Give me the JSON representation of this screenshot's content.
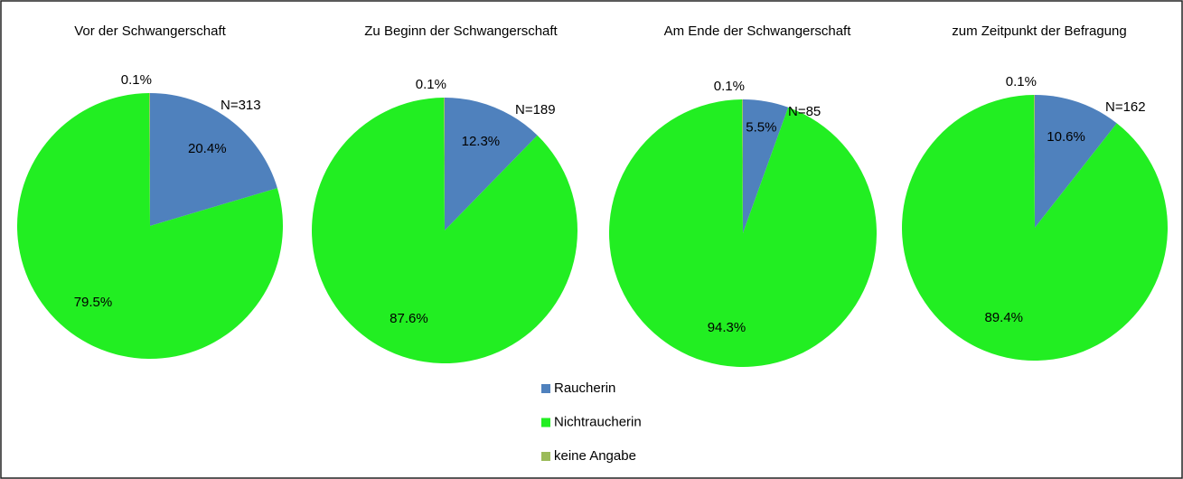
{
  "chart_data": [
    {
      "type": "pie",
      "title": "Vor der Schwangerschaft",
      "annotation": "N=313",
      "categories": [
        "Raucherin",
        "Nichtraucherin",
        "keine Angabe"
      ],
      "values": [
        20.4,
        79.5,
        0.1
      ],
      "value_labels": [
        "20.4%",
        "79.5%",
        "0.1%"
      ],
      "colors": [
        "#4f81bd",
        "#22ee22",
        "#9bbb59"
      ]
    },
    {
      "type": "pie",
      "title": "Zu Beginn der Schwangerschaft",
      "annotation": "N=189",
      "categories": [
        "Raucherin",
        "Nichtraucherin",
        "keine Angabe"
      ],
      "values": [
        12.3,
        87.6,
        0.1
      ],
      "value_labels": [
        "12.3%",
        "87.6%",
        "0.1%"
      ],
      "colors": [
        "#4f81bd",
        "#22ee22",
        "#9bbb59"
      ]
    },
    {
      "type": "pie",
      "title": "Am Ende der Schwangerschaft",
      "annotation": "N=85",
      "categories": [
        "Raucherin",
        "Nichtraucherin",
        "keine Angabe"
      ],
      "values": [
        5.5,
        94.3,
        0.1
      ],
      "value_labels": [
        "5.5%",
        "94.3%",
        "0.1%"
      ],
      "colors": [
        "#4f81bd",
        "#22ee22",
        "#9bbb59"
      ]
    },
    {
      "type": "pie",
      "title": "zum Zeitpunkt der Befragung",
      "annotation": "N=162",
      "categories": [
        "Raucherin",
        "Nichtraucherin",
        "keine Angabe"
      ],
      "values": [
        10.6,
        89.4,
        0.1
      ],
      "value_labels": [
        "10.6%",
        "89.4%",
        "0.1%"
      ],
      "colors": [
        "#4f81bd",
        "#22ee22",
        "#9bbb59"
      ]
    }
  ]
}
